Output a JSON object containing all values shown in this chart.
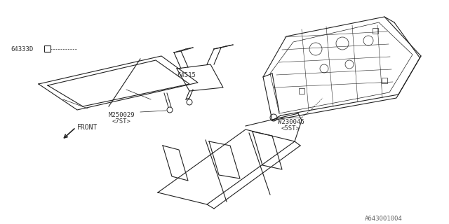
{
  "bg_color": "#ffffff",
  "line_color": "#222222",
  "label_color": "#333333",
  "part_number_bottom": "A643001004",
  "labels": {
    "front_arrow": "FRONT",
    "m250029": "M250029",
    "m250029_sub": "<7ST>",
    "w230046": "W230046",
    "w230046_sub": "<5ST>",
    "part64515": "64515",
    "part64333d": "64333D"
  },
  "fig_width": 6.4,
  "fig_height": 3.2,
  "dpi": 100
}
